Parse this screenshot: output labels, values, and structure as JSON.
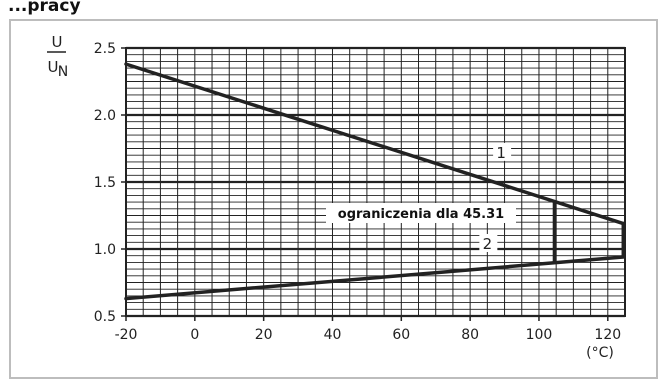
{
  "header": {
    "fragment": "...pracy"
  },
  "chart_data": {
    "type": "line",
    "ylabel_num": "U",
    "ylabel_den": "U",
    "ylabel_den_sub": "N",
    "xunit": "(°C)",
    "xlim": [
      -20,
      125
    ],
    "ylim": [
      0.5,
      2.5
    ],
    "x_ticks": [
      "-20",
      "0",
      "20",
      "40",
      "60",
      "80",
      "100",
      "120"
    ],
    "x_tick_values": [
      -20,
      0,
      20,
      40,
      60,
      80,
      100,
      120
    ],
    "y_ticks": [
      "0.5",
      "1.0",
      "1.5",
      "2.0",
      "2.5"
    ],
    "y_tick_values": [
      0.5,
      1.0,
      1.5,
      2.0,
      2.5
    ],
    "grid": true,
    "series": [
      {
        "name": "1",
        "points": [
          [
            -20,
            2.38
          ],
          [
            124.5,
            1.19
          ]
        ]
      },
      {
        "name": "2",
        "points": [
          [
            -20,
            0.63
          ],
          [
            124.5,
            0.94
          ]
        ]
      }
    ],
    "limit_box": {
      "label": "ograniczenia dla 45.31",
      "left_x": 104.5,
      "right_x": 124.5,
      "left_y": [
        0.9,
        1.35
      ],
      "right_y": [
        0.94,
        1.19
      ]
    },
    "series_labels": [
      {
        "text": "1",
        "x": 89,
        "y": 1.68
      },
      {
        "text": "2",
        "x": 85,
        "y": 1.0
      }
    ]
  }
}
